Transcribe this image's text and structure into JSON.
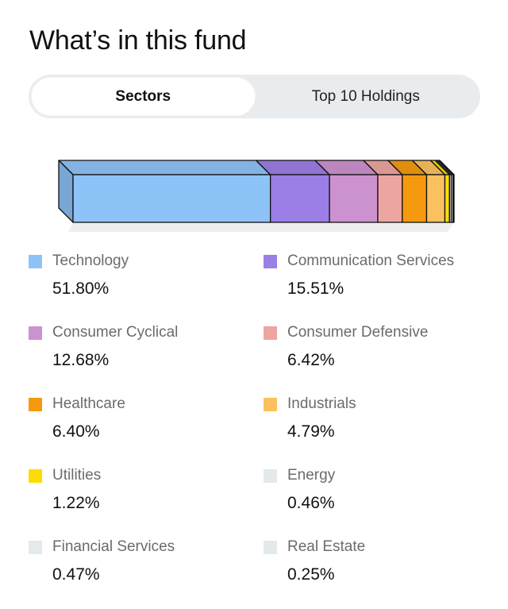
{
  "header": {
    "title": "What’s in this fund"
  },
  "tabs": [
    {
      "label": "Sectors",
      "active": true
    },
    {
      "label": "Top 10 Holdings",
      "active": false
    }
  ],
  "chart_data": {
    "type": "bar",
    "orientation": "horizontal-stacked",
    "categories": [
      "Technology",
      "Communication Services",
      "Consumer Cyclical",
      "Consumer Defensive",
      "Healthcare",
      "Industrials",
      "Utilities",
      "Energy",
      "Financial Services",
      "Real Estate"
    ],
    "values": [
      51.8,
      15.51,
      12.68,
      6.42,
      6.4,
      4.79,
      1.22,
      0.46,
      0.47,
      0.25
    ],
    "unit": "%"
  },
  "sectors": [
    {
      "label": "Technology",
      "value": "51.80%",
      "color": "#8ec3f7"
    },
    {
      "label": "Communication Services",
      "value": "15.51%",
      "color": "#9b7ee6"
    },
    {
      "label": "Consumer Cyclical",
      "value": "12.68%",
      "color": "#cc92cf"
    },
    {
      "label": "Consumer Defensive",
      "value": "6.42%",
      "color": "#eda5a1"
    },
    {
      "label": "Healthcare",
      "value": "6.40%",
      "color": "#f59a0f"
    },
    {
      "label": "Industrials",
      "value": "4.79%",
      "color": "#fbc15f"
    },
    {
      "label": "Utilities",
      "value": "1.22%",
      "color": "#fbdc05"
    },
    {
      "label": "Energy",
      "value": "0.46%",
      "color": "#e4e9ec"
    },
    {
      "label": "Financial Services",
      "value": "0.47%",
      "color": "#e4e9ec"
    },
    {
      "label": "Real Estate",
      "value": "0.25%",
      "color": "#e4e9ec"
    }
  ]
}
